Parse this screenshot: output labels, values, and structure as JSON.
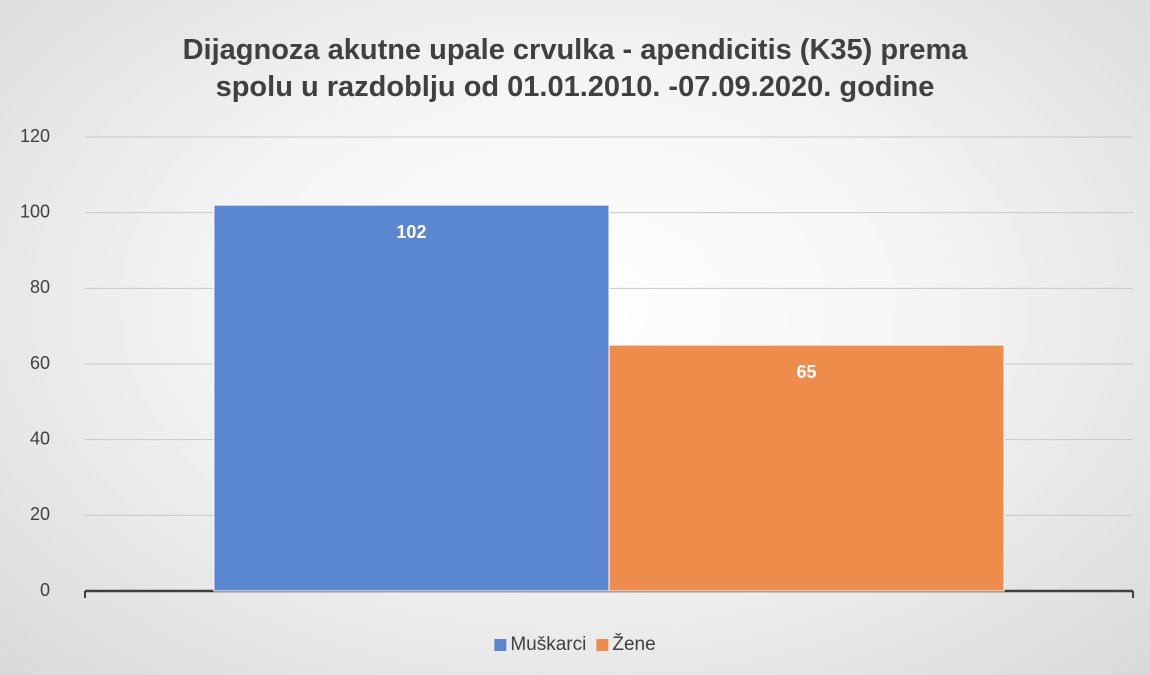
{
  "chart_data": {
    "type": "bar",
    "title": "Dijagnoza akutne upale crvulka - apendicitis (K35) prema spolu u razdoblju od 01.01.2010. -07.09.2020. godine",
    "categories": [
      null
    ],
    "series": [
      {
        "name": "Muškarci",
        "color": "#5b87d0",
        "values": [
          102
        ]
      },
      {
        "name": "Žene",
        "color": "#ee8c4c",
        "values": [
          65
        ]
      }
    ],
    "ylim": [
      0,
      120
    ],
    "yticks": [
      0,
      20,
      40,
      60,
      80,
      100,
      120
    ],
    "grid": true,
    "legend": "bottom"
  }
}
